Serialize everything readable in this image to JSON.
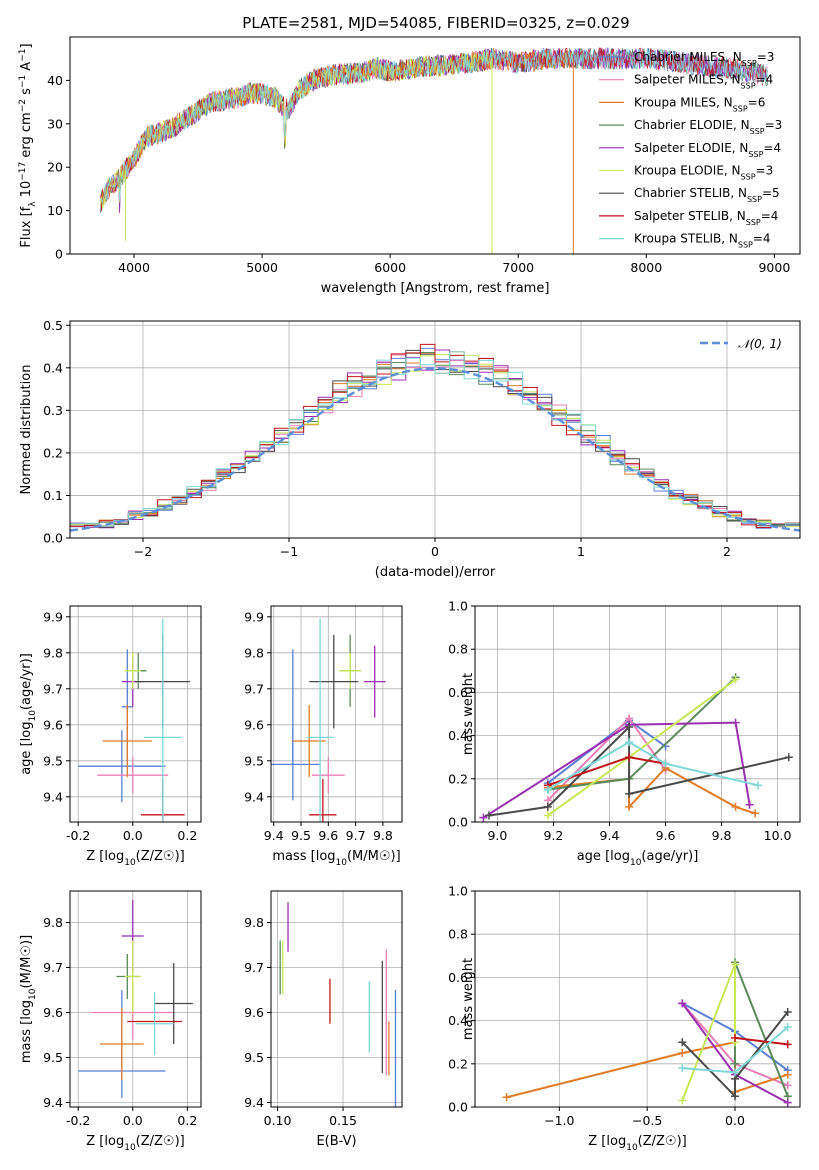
{
  "figure_title": "PLATE=2581, MJD=54085, FIBERID=0325, z=0.029",
  "colors": {
    "Chabrier MILES": "#5b7fd6",
    "Salpeter MILES": "#e87fb7",
    "Kroupa MILES": "#e07b27",
    "Chabrier ELODIE": "#5a8a5a",
    "Salpeter ELODIE": "#9a2fb0",
    "Kroupa ELODIE": "#c8e85a",
    "Chabrier STELIB": "#4a4a4a",
    "Salpeter STELIB": "#c0141b",
    "Kroupa STELIB": "#7fd8d8"
  },
  "chart_data": [
    {
      "id": "spectrum",
      "type": "line",
      "title": "PLATE=2581, MJD=54085, FIBERID=0325, z=0.029",
      "xlabel": "wavelength [Angstrom, rest frame]",
      "ylabel": "Flux [f_λ 10^-17 erg cm^-2 s^-1 A^-1]",
      "xlim": [
        3500,
        9200
      ],
      "ylim": [
        0,
        50
      ],
      "xticks": [
        4000,
        5000,
        6000,
        7000,
        8000,
        9000
      ],
      "yticks": [
        0,
        10,
        20,
        30,
        40
      ],
      "grid": false,
      "legend_position": "top-right",
      "legend": [
        "Chabrier MILES, N_SSP=3",
        "Salpeter MILES, N_SSP=4",
        "Kroupa MILES, N_SSP=6",
        "Chabrier ELODIE, N_SSP=3",
        "Salpeter ELODIE, N_SSP=4",
        "Kroupa ELODIE, N_SSP=3",
        "Chabrier STELIB, N_SSP=5",
        "Salpeter STELIB, N_SSP=4",
        "Kroupa STELIB, N_SSP=4"
      ],
      "continuum": {
        "x": [
          3740,
          3800,
          3900,
          4000,
          4100,
          4200,
          4300,
          4400,
          4500,
          4600,
          4700,
          4800,
          4900,
          5000,
          5100,
          5200,
          5300,
          5400,
          5500,
          5600,
          5700,
          5800,
          5900,
          6000,
          6200,
          6400,
          6600,
          6800,
          7000,
          7200,
          7400,
          7600,
          7800,
          8000,
          8200,
          8400,
          8600,
          8800,
          8950
        ],
        "y": [
          12,
          15,
          18,
          22,
          27,
          28,
          29,
          31,
          33,
          35,
          35.5,
          36,
          37,
          37,
          36,
          33,
          38,
          40,
          41,
          41.5,
          41.5,
          42,
          43,
          42,
          43,
          43.5,
          44,
          45,
          44,
          45,
          45,
          45,
          45,
          45,
          44.5,
          43.5,
          43,
          42,
          41
        ]
      },
      "dips": [
        {
          "x": 3933,
          "y": 3,
          "series": "Kroupa ELODIE"
        },
        {
          "x": 6795,
          "y": 0,
          "series": "Kroupa ELODIE"
        },
        {
          "x": 7430,
          "y": 0,
          "series": "Kroupa MILES"
        }
      ]
    },
    {
      "id": "residuals",
      "type": "step",
      "xlabel": "(data-model)/error",
      "ylabel": "Normed distribution",
      "xlim": [
        -2.5,
        2.5
      ],
      "ylim": [
        0,
        0.51
      ],
      "xticks": [
        -2,
        -1,
        0,
        1,
        2
      ],
      "yticks": [
        0.0,
        0.1,
        0.2,
        0.3,
        0.4,
        0.5
      ],
      "grid": true,
      "legend_position": "top-right",
      "normal_curve": {
        "label": "𝒩(0, 1)",
        "mean": 0,
        "sigma": 1
      }
    },
    {
      "id": "age-vs-Z",
      "type": "errorbar",
      "xlabel": "Z [log10(Z/Z☉)]",
      "ylabel": "age [log10(age/yr)]",
      "xlim": [
        -0.23,
        0.25
      ],
      "ylim": [
        9.33,
        9.93
      ],
      "xticks": [
        -0.2,
        0.0,
        0.2
      ],
      "yticks": [
        9.4,
        9.5,
        9.6,
        9.7,
        9.8,
        9.9
      ],
      "grid": true,
      "points": [
        {
          "s": "Chabrier MILES",
          "x": -0.04,
          "xe": 0.16,
          "y": 9.485,
          "ye": 0.1
        },
        {
          "s": "Chabrier MILES",
          "x": -0.02,
          "xe": 0.02,
          "y": 9.65,
          "ye": 0.16
        },
        {
          "s": "Salpeter MILES",
          "x": 0.0,
          "xe": 0.13,
          "y": 9.46,
          "ye": 0.05
        },
        {
          "s": "Kroupa MILES",
          "x": -0.02,
          "xe": 0.09,
          "y": 9.555,
          "ye": 0.1
        },
        {
          "s": "Chabrier ELODIE",
          "x": 0.02,
          "xe": 0.03,
          "y": 9.75,
          "ye": 0.05
        },
        {
          "s": "Salpeter ELODIE",
          "x": 0.0,
          "xe": 0.04,
          "y": 9.72,
          "ye": 0.07
        },
        {
          "s": "Kroupa ELODIE",
          "x": 0.0,
          "xe": 0.03,
          "y": 9.75,
          "ye": 0.05
        },
        {
          "s": "Chabrier STELIB",
          "x": 0.11,
          "xe": 0.1,
          "y": 9.72,
          "ye": 0.13
        },
        {
          "s": "Salpeter STELIB",
          "x": 0.11,
          "xe": 0.08,
          "y": 9.35,
          "ye": 0.1
        },
        {
          "s": "Kroupa STELIB",
          "x": 0.11,
          "xe": 0.07,
          "y": 9.565,
          "ye": 0.33
        }
      ]
    },
    {
      "id": "age-vs-mass",
      "type": "errorbar",
      "xlabel": "mass [log10(M/M☉)]",
      "ylabel": "",
      "xlim": [
        9.39,
        9.87
      ],
      "ylim": [
        9.33,
        9.93
      ],
      "xticks": [
        9.4,
        9.5,
        9.6,
        9.7,
        9.8
      ],
      "yticks": [
        9.4,
        9.5,
        9.6,
        9.7,
        9.8,
        9.9
      ],
      "grid": true,
      "points": [
        {
          "s": "Chabrier MILES",
          "x": 9.47,
          "xe": 0.1,
          "y": 9.49,
          "ye": 0.1
        },
        {
          "s": "Chabrier MILES",
          "x": 9.47,
          "xe": 0.0,
          "y": 9.65,
          "ye": 0.16
        },
        {
          "s": "Salpeter MILES",
          "x": 9.6,
          "xe": 0.06,
          "y": 9.46,
          "ye": 0.05
        },
        {
          "s": "Kroupa MILES",
          "x": 9.53,
          "xe": 0.06,
          "y": 9.555,
          "ye": 0.1
        },
        {
          "s": "Chabrier ELODIE",
          "x": 9.68,
          "xe": 0.04,
          "y": 9.75,
          "ye": 0.1
        },
        {
          "s": "Salpeter ELODIE",
          "x": 9.77,
          "xe": 0.04,
          "y": 9.72,
          "ye": 0.1
        },
        {
          "s": "Kroupa ELODIE",
          "x": 9.68,
          "xe": 0.04,
          "y": 9.75,
          "ye": 0.05
        },
        {
          "s": "Chabrier STELIB",
          "x": 9.62,
          "xe": 0.09,
          "y": 9.72,
          "ye": 0.13
        },
        {
          "s": "Salpeter STELIB",
          "x": 9.58,
          "xe": 0.05,
          "y": 9.35,
          "ye": 0.1
        },
        {
          "s": "Kroupa STELIB",
          "x": 9.57,
          "xe": 0.05,
          "y": 9.565,
          "ye": 0.33
        }
      ]
    },
    {
      "id": "mass-weight-vs-age",
      "type": "line",
      "xlabel": "age [log10(age/yr)]",
      "ylabel": "mass weight",
      "xlim": [
        8.92,
        10.08
      ],
      "ylim": [
        0,
        1.0
      ],
      "xticks": [
        9.0,
        9.2,
        9.4,
        9.6,
        9.8,
        10.0
      ],
      "yticks": [
        0.0,
        0.2,
        0.4,
        0.6,
        0.8,
        1.0
      ],
      "grid": true,
      "series": [
        {
          "name": "Chabrier MILES",
          "x": [
            9.18,
            9.47,
            9.6
          ],
          "y": [
            0.18,
            0.47,
            0.35
          ]
        },
        {
          "name": "Salpeter MILES",
          "x": [
            9.18,
            9.47,
            9.6
          ],
          "y": [
            0.1,
            0.48,
            0.24
          ]
        },
        {
          "name": "Kroupa MILES",
          "x": [
            9.18,
            9.47,
            9.47,
            9.6,
            9.85,
            9.92
          ],
          "y": [
            0.16,
            0.2,
            0.07,
            0.25,
            0.07,
            0.04
          ]
        },
        {
          "name": "Chabrier ELODIE",
          "x": [
            9.18,
            9.47,
            9.85
          ],
          "y": [
            0.15,
            0.2,
            0.67
          ]
        },
        {
          "name": "Salpeter ELODIE",
          "x": [
            8.95,
            9.47,
            9.85,
            9.9
          ],
          "y": [
            0.02,
            0.45,
            0.46,
            0.08
          ]
        },
        {
          "name": "Kroupa ELODIE",
          "x": [
            9.18,
            9.47,
            9.85
          ],
          "y": [
            0.03,
            0.3,
            0.66
          ]
        },
        {
          "name": "Chabrier STELIB",
          "x": [
            8.97,
            9.18,
            9.47,
            9.47,
            10.04
          ],
          "y": [
            0.03,
            0.07,
            0.44,
            0.13,
            0.3
          ]
        },
        {
          "name": "Salpeter STELIB",
          "x": [
            9.18,
            9.47,
            9.6
          ],
          "y": [
            0.17,
            0.3,
            0.27
          ]
        },
        {
          "name": "Kroupa STELIB",
          "x": [
            9.18,
            9.47,
            9.6,
            9.93
          ],
          "y": [
            0.15,
            0.37,
            0.27,
            0.17
          ]
        }
      ]
    },
    {
      "id": "mass-vs-Z",
      "type": "errorbar",
      "xlabel": "Z [log10(Z/Z☉)]",
      "ylabel": "mass [log10(M/M☉)]",
      "xlim": [
        -0.23,
        0.25
      ],
      "ylim": [
        9.39,
        9.87
      ],
      "xticks": [
        -0.2,
        0.0,
        0.2
      ],
      "yticks": [
        9.4,
        9.5,
        9.6,
        9.7,
        9.8
      ],
      "grid": true,
      "points": [
        {
          "s": "Chabrier MILES",
          "x": -0.04,
          "xe": 0.16,
          "y": 9.47,
          "ye": 0.0
        },
        {
          "s": "Chabrier MILES",
          "x": -0.04,
          "xe": 0.0,
          "y": 9.53,
          "ye": 0.12
        },
        {
          "s": "Salpeter MILES",
          "x": 0.0,
          "xe": 0.15,
          "y": 9.6,
          "ye": 0.06
        },
        {
          "s": "Kroupa MILES",
          "x": -0.04,
          "xe": 0.08,
          "y": 9.53,
          "ye": 0.08
        },
        {
          "s": "Chabrier ELODIE",
          "x": -0.02,
          "xe": 0.04,
          "y": 9.68,
          "ye": 0.05
        },
        {
          "s": "Salpeter ELODIE",
          "x": 0.0,
          "xe": 0.04,
          "y": 9.77,
          "ye": 0.08
        },
        {
          "s": "Kroupa ELODIE",
          "x": 0.0,
          "xe": 0.03,
          "y": 9.68,
          "ye": 0.08
        },
        {
          "s": "Chabrier STELIB",
          "x": 0.15,
          "xe": 0.07,
          "y": 9.62,
          "ye": 0.09
        },
        {
          "s": "Salpeter STELIB",
          "x": 0.08,
          "xe": 0.1,
          "y": 9.58,
          "ye": 0.0
        },
        {
          "s": "Kroupa STELIB",
          "x": 0.08,
          "xe": 0.07,
          "y": 9.575,
          "ye": 0.07
        }
      ]
    },
    {
      "id": "mass-vs-EBV",
      "type": "errorbar",
      "xlabel": "E(B-V)",
      "ylabel": "",
      "xlim": [
        0.095,
        0.195
      ],
      "ylim": [
        9.39,
        9.87
      ],
      "xticks": [
        0.1,
        0.15
      ],
      "yticks": [
        9.4,
        9.5,
        9.6,
        9.7,
        9.8
      ],
      "grid": true,
      "points": [
        {
          "s": "Chabrier MILES",
          "x": 0.19,
          "xe": 0.0,
          "y": 9.52,
          "ye": 0.13
        },
        {
          "s": "Salpeter MILES",
          "x": 0.183,
          "xe": 0.0,
          "y": 9.6,
          "ye": 0.14
        },
        {
          "s": "Kroupa MILES",
          "x": 0.185,
          "xe": 0.0,
          "y": 9.52,
          "ye": 0.06
        },
        {
          "s": "Chabrier ELODIE",
          "x": 0.102,
          "xe": 0.0,
          "y": 9.7,
          "ye": 0.06
        },
        {
          "s": "Salpeter ELODIE",
          "x": 0.108,
          "xe": 0.0,
          "y": 9.79,
          "ye": 0.055
        },
        {
          "s": "Kroupa ELODIE",
          "x": 0.104,
          "xe": 0.0,
          "y": 9.7,
          "ye": 0.06
        },
        {
          "s": "Chabrier STELIB",
          "x": 0.18,
          "xe": 0.0,
          "y": 9.59,
          "ye": 0.125
        },
        {
          "s": "Salpeter STELIB",
          "x": 0.14,
          "xe": 0.0,
          "y": 9.625,
          "ye": 0.05
        },
        {
          "s": "Kroupa STELIB",
          "x": 0.17,
          "xe": 0.0,
          "y": 9.59,
          "ye": 0.08
        }
      ]
    },
    {
      "id": "mass-weight-vs-Z",
      "type": "line",
      "xlabel": "Z [log10(Z/Z☉)]",
      "ylabel": "mass weight",
      "xlim": [
        -1.48,
        0.37
      ],
      "ylim": [
        0,
        1.0
      ],
      "xticks": [
        -1.0,
        -0.5,
        0.0
      ],
      "yticks": [
        0.0,
        0.2,
        0.4,
        0.6,
        0.8,
        1.0
      ],
      "grid": true,
      "series": [
        {
          "name": "Chabrier MILES",
          "x": [
            -0.3,
            0.0,
            0.3
          ],
          "y": [
            0.48,
            0.35,
            0.17
          ]
        },
        {
          "name": "Salpeter MILES",
          "x": [
            -0.3,
            0.0,
            0.3
          ],
          "y": [
            0.48,
            0.2,
            0.1
          ]
        },
        {
          "name": "Kroupa MILES",
          "x": [
            -1.3,
            -0.3,
            0.0,
            0.0,
            0.3
          ],
          "y": [
            0.045,
            0.25,
            0.3,
            0.07,
            0.15
          ]
        },
        {
          "name": "Chabrier ELODIE",
          "x": [
            0.0,
            0.0,
            0.3
          ],
          "y": [
            0.2,
            0.67,
            0.05
          ]
        },
        {
          "name": "Salpeter ELODIE",
          "x": [
            -0.3,
            0.0,
            0.3
          ],
          "y": [
            0.48,
            0.15,
            0.02
          ]
        },
        {
          "name": "Kroupa ELODIE",
          "x": [
            -0.3,
            0.0,
            0.0
          ],
          "y": [
            0.03,
            0.66,
            0.3
          ]
        },
        {
          "name": "Chabrier STELIB",
          "x": [
            -0.3,
            0.0,
            0.0,
            0.3
          ],
          "y": [
            0.3,
            0.05,
            0.13,
            0.44
          ]
        },
        {
          "name": "Salpeter STELIB",
          "x": [
            0.0,
            0.3
          ],
          "y": [
            0.32,
            0.29
          ]
        },
        {
          "name": "Kroupa STELIB",
          "x": [
            -0.3,
            0.0,
            0.3
          ],
          "y": [
            0.18,
            0.16,
            0.37
          ]
        }
      ]
    }
  ]
}
